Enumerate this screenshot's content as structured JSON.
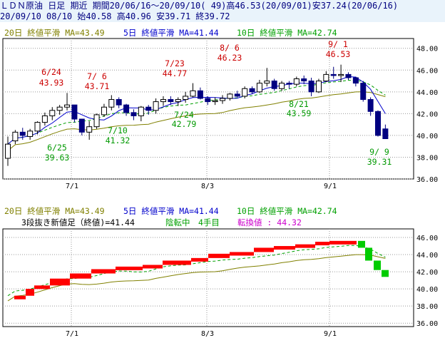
{
  "header": {
    "line1": "ＬＤＮ原油 日足 期近 期間20/06/16～20/09/10( 49)高46.53(20/09/01)安37.24(20/06/16)",
    "line2": "20/09/10 08/10 始40.58 高40.96 安39.71 終39.72"
  },
  "colors": {
    "up": "#000000",
    "down": "#000080",
    "ma20": "#808000",
    "ma5": "#0000cc",
    "ma10": "#00a000",
    "red_label": "#cc0000",
    "green_label": "#009900",
    "magenta": "#cc00cc",
    "brick_up": "#ff0000",
    "brick_down": "#00cc00"
  },
  "legend": {
    "ma20": "20日 終値平滑 MA=43.49",
    "ma5": "5日 終値平滑 MA=41.44",
    "ma10": "10日 終値平滑 MA=42.74"
  },
  "panel2": {
    "title_black": "3段抜き新値足（終値)=41.44",
    "title_green": "陰転中　4手目",
    "title_magenta": "転換値 : 44.32"
  },
  "chart_data": [
    {
      "type": "candlestick",
      "y_ticks": [
        "36.00",
        "38.00",
        "40.00",
        "42.00",
        "44.00",
        "46.00",
        "48.00"
      ],
      "ylim": [
        36,
        48.9
      ],
      "x_ticks": [
        "7/1",
        "8/3",
        "9/1"
      ],
      "series": [
        {
          "name": "20日 終値平滑",
          "ma": 43.49
        },
        {
          "name": "5日 終値平滑",
          "ma": 41.44
        },
        {
          "name": "10日 終値平滑",
          "ma": 42.74
        }
      ],
      "candles": [
        [
          37.9,
          39.9,
          37.2,
          39.2
        ],
        [
          39.5,
          40.5,
          39.2,
          40.3
        ],
        [
          40.3,
          40.7,
          39.6,
          40.0
        ],
        [
          39.9,
          40.6,
          39.6,
          40.4
        ],
        [
          40.4,
          41.3,
          40.1,
          41.2
        ],
        [
          41.2,
          42.1,
          40.9,
          41.8
        ],
        [
          41.8,
          42.6,
          41.4,
          42.3
        ],
        [
          42.3,
          42.8,
          41.9,
          42.6
        ],
        [
          42.6,
          43.9,
          42.3,
          42.8
        ],
        [
          42.8,
          42.8,
          41.2,
          41.5
        ],
        [
          41.5,
          41.5,
          40.0,
          40.3
        ],
        [
          40.3,
          41.3,
          39.6,
          40.8
        ],
        [
          40.8,
          42.0,
          40.6,
          41.9
        ],
        [
          41.9,
          42.9,
          41.7,
          42.6
        ],
        [
          42.6,
          43.7,
          42.3,
          43.3
        ],
        [
          43.3,
          43.5,
          42.5,
          42.8
        ],
        [
          42.8,
          42.9,
          41.8,
          42.1
        ],
        [
          42.1,
          42.4,
          41.4,
          41.8
        ],
        [
          41.8,
          42.7,
          41.3,
          42.6
        ],
        [
          42.6,
          42.8,
          41.9,
          42.3
        ],
        [
          42.3,
          43.4,
          42.0,
          43.1
        ],
        [
          43.1,
          43.6,
          42.7,
          43.3
        ],
        [
          43.3,
          43.6,
          42.8,
          43.1
        ],
        [
          43.1,
          43.5,
          42.7,
          43.3
        ],
        [
          43.3,
          44.0,
          43.0,
          43.6
        ],
        [
          43.6,
          44.8,
          43.5,
          44.1
        ],
        [
          44.1,
          44.4,
          43.3,
          43.4
        ],
        [
          43.4,
          43.6,
          42.8,
          43.1
        ],
        [
          43.1,
          43.5,
          42.8,
          43.2
        ],
        [
          43.2,
          43.7,
          42.9,
          43.4
        ],
        [
          43.4,
          43.9,
          43.2,
          43.8
        ],
        [
          43.8,
          44.1,
          43.5,
          43.6
        ],
        [
          43.6,
          44.5,
          43.4,
          44.3
        ],
        [
          44.3,
          44.5,
          43.8,
          44.0
        ],
        [
          44.0,
          45.1,
          43.9,
          44.8
        ],
        [
          44.8,
          46.2,
          44.5,
          45.0
        ],
        [
          45.0,
          45.2,
          44.1,
          44.3
        ],
        [
          44.3,
          45.0,
          44.1,
          44.8
        ],
        [
          44.8,
          45.0,
          44.3,
          44.7
        ],
        [
          44.7,
          45.4,
          44.5,
          45.2
        ],
        [
          45.2,
          45.5,
          44.7,
          45.0
        ],
        [
          45.0,
          45.3,
          43.6,
          44.0
        ],
        [
          44.0,
          45.2,
          43.9,
          45.0
        ],
        [
          45.0,
          45.9,
          44.9,
          45.6
        ],
        [
          45.6,
          46.3,
          45.2,
          45.5
        ],
        [
          45.5,
          46.5,
          44.9,
          45.6
        ],
        [
          45.6,
          45.8,
          45.1,
          45.3
        ],
        [
          45.3,
          45.4,
          44.5,
          44.8
        ],
        [
          44.8,
          45.0,
          43.1,
          43.3
        ],
        [
          43.3,
          43.5,
          41.8,
          42.2
        ],
        [
          42.2,
          42.3,
          39.9,
          40.0
        ],
        [
          40.6,
          41.0,
          39.7,
          39.7
        ]
      ],
      "annotations": [
        {
          "date": "6/24",
          "value": "43.93",
          "kind": "high"
        },
        {
          "date": "7/ 6",
          "value": "43.71",
          "kind": "high"
        },
        {
          "date": "7/23",
          "value": "44.77",
          "kind": "high"
        },
        {
          "date": "8/ 6",
          "value": "46.23",
          "kind": "high"
        },
        {
          "date": "9/ 1",
          "value": "46.53",
          "kind": "high"
        },
        {
          "date": "6/25",
          "value": "39.63",
          "kind": "low"
        },
        {
          "date": "7/10",
          "value": "41.32",
          "kind": "low"
        },
        {
          "date": "7/24",
          "value": "42.79",
          "kind": "low"
        },
        {
          "date": "8/21",
          "value": "43.59",
          "kind": "low"
        },
        {
          "date": "9/ 9",
          "value": "39.31",
          "kind": "low"
        }
      ]
    },
    {
      "type": "bar",
      "subtype": "new-price-bricks",
      "y_ticks": [
        "36.00",
        "38.00",
        "40.00",
        "42.00",
        "44.00",
        "46.00"
      ],
      "ylim": [
        35.6,
        47.0
      ],
      "x_ticks": [
        "7/1",
        "8/3",
        "9/1"
      ],
      "bricks_up": [
        39.2,
        40.0,
        40.4,
        41.2,
        41.8,
        42.3,
        42.6,
        42.8,
        43.3,
        43.6,
        44.1,
        44.3,
        44.8,
        45.0,
        45.2,
        45.5,
        45.6
      ],
      "bricks_down": [
        44.8,
        43.3,
        42.2,
        41.4
      ]
    }
  ]
}
